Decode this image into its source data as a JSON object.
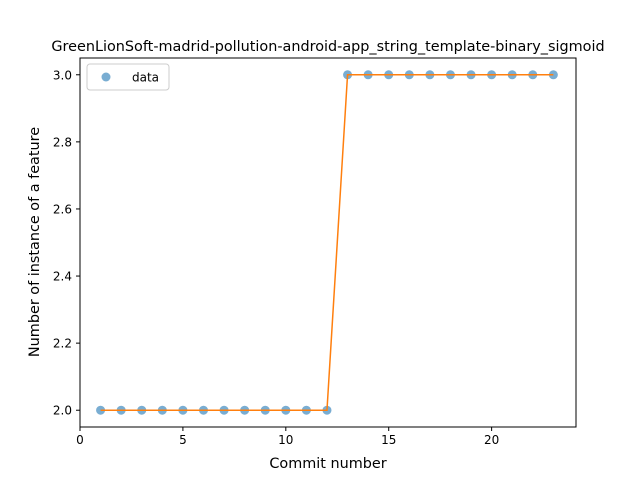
{
  "chart_data": {
    "type": "line",
    "title": "GreenLionSoft-madrid-pollution-android-app_string_template-binary_sigmoid",
    "xlabel": "Commit number",
    "ylabel": "Number of instance of a feature",
    "xlim": [
      0.0,
      24.1
    ],
    "ylim": [
      1.95,
      3.05
    ],
    "xticks": [
      0,
      5,
      10,
      15,
      20
    ],
    "xtick_labels": [
      "0",
      "5",
      "10",
      "15",
      "20"
    ],
    "yticks": [
      2.0,
      2.2,
      2.4,
      2.6,
      2.8,
      3.0
    ],
    "ytick_labels": [
      "2.0",
      "2.2",
      "2.4",
      "2.6",
      "2.8",
      "3.0"
    ],
    "grid": false,
    "legend_position": "upper-left",
    "series": [
      {
        "name": "data",
        "kind": "scatter",
        "color": "#1f77b4",
        "x": [
          1,
          2,
          3,
          4,
          5,
          6,
          7,
          8,
          9,
          10,
          11,
          12,
          13,
          14,
          15,
          16,
          17,
          18,
          19,
          20,
          21,
          22,
          23
        ],
        "y": [
          2,
          2,
          2,
          2,
          2,
          2,
          2,
          2,
          2,
          2,
          2,
          2,
          3,
          3,
          3,
          3,
          3,
          3,
          3,
          3,
          3,
          3,
          3
        ]
      },
      {
        "kind": "line",
        "color": "#ff7f0e",
        "x": [
          1,
          2,
          3,
          4,
          5,
          6,
          7,
          8,
          9,
          10,
          11,
          12,
          13,
          14,
          15,
          16,
          17,
          18,
          19,
          20,
          21,
          22,
          23
        ],
        "y": [
          2,
          2,
          2,
          2,
          2,
          2,
          2,
          2,
          2,
          2,
          2,
          2,
          3,
          3,
          3,
          3,
          3,
          3,
          3,
          3,
          3,
          3,
          3
        ]
      }
    ]
  }
}
